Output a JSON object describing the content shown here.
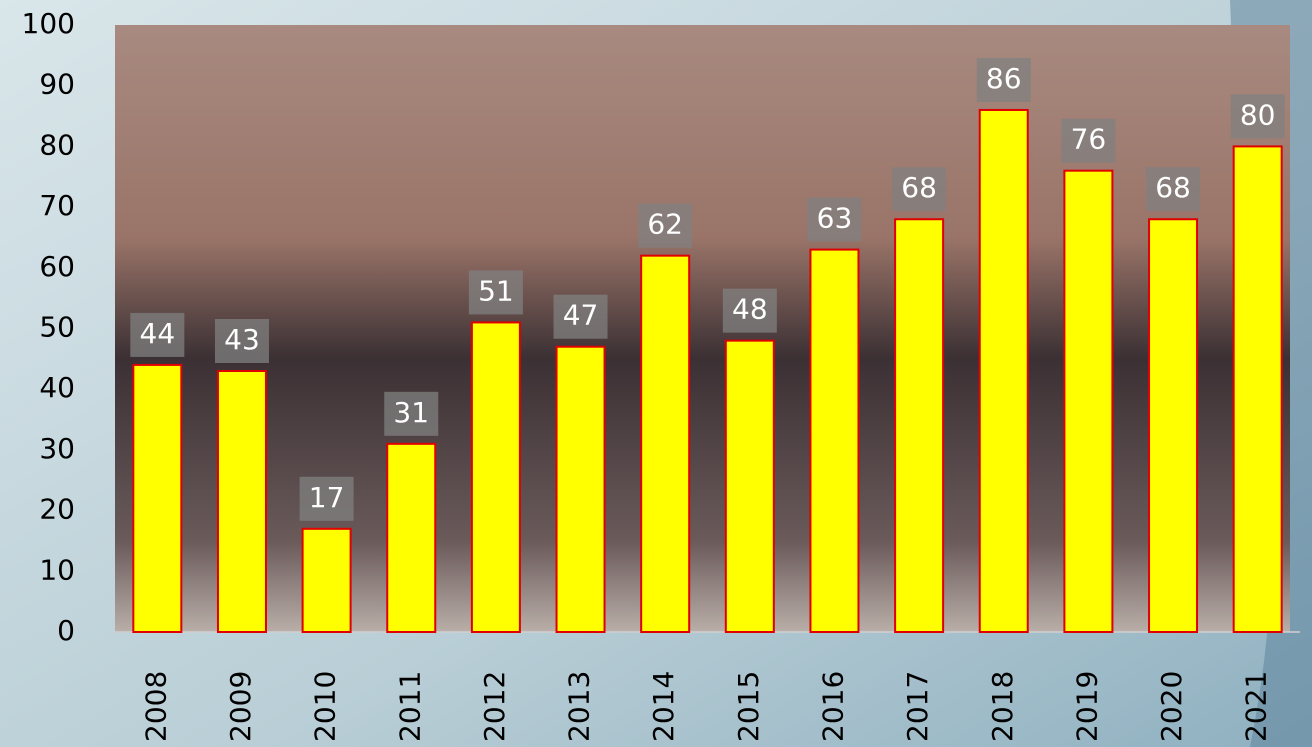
{
  "chart_data": {
    "type": "bar",
    "categories": [
      "2008",
      "2009",
      "2010",
      "2011",
      "2012",
      "2013",
      "2014",
      "2015",
      "2016",
      "2017",
      "2018",
      "2019",
      "2020",
      "2021"
    ],
    "values": [
      44,
      43,
      17,
      31,
      51,
      47,
      62,
      48,
      63,
      68,
      86,
      76,
      68,
      80
    ],
    "color": "#ffff00",
    "edge_color": "#e00000",
    "ylim": [
      0,
      100
    ],
    "yticks": [
      0,
      10,
      20,
      30,
      40,
      50,
      60,
      70,
      80,
      90,
      100
    ],
    "data_labels": true
  }
}
